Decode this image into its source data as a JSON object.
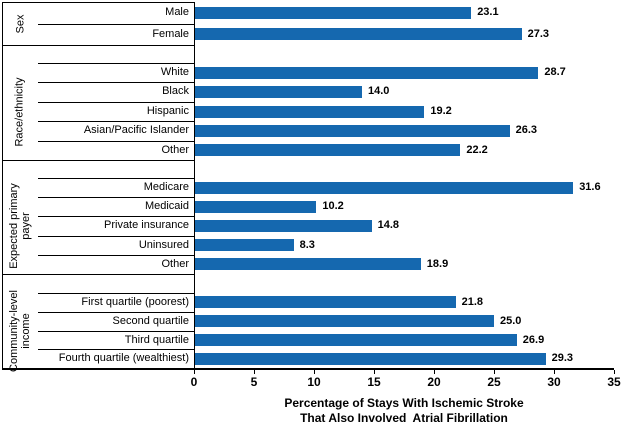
{
  "chart_data": {
    "type": "bar",
    "orientation": "horizontal",
    "title": "",
    "xlabel": "Percentage of Stays With Ischemic Stroke\nThat Also Involved  Atrial Fibrillation",
    "xlim": [
      0,
      35
    ],
    "x_ticks": [
      0,
      5,
      10,
      15,
      20,
      25,
      30,
      35
    ],
    "grid": false,
    "legend": false,
    "bar_color": "#1568AF",
    "axis_color": "#000000",
    "value_decimals": 1,
    "groups": [
      {
        "label": "Sex",
        "items": [
          {
            "label": "Male",
            "value": 23.1
          },
          {
            "label": "Female",
            "value": 27.3
          }
        ]
      },
      {
        "label": "Race/ethnicity",
        "items": [
          {
            "label": "White",
            "value": 28.7
          },
          {
            "label": "Black",
            "value": 14.0
          },
          {
            "label": "Hispanic",
            "value": 19.2
          },
          {
            "label": "Asian/Pacific Islander",
            "value": 26.3
          },
          {
            "label": "Other",
            "value": 22.2
          }
        ]
      },
      {
        "label": "Expected primary\npayer",
        "items": [
          {
            "label": "Medicare",
            "value": 31.6
          },
          {
            "label": "Medicaid",
            "value": 10.2
          },
          {
            "label": "Private insurance",
            "value": 14.8
          },
          {
            "label": "Uninsured",
            "value": 8.3
          },
          {
            "label": "Other",
            "value": 18.9
          }
        ]
      },
      {
        "label": "Community-level\nincome",
        "items": [
          {
            "label": "First quartile (poorest)",
            "value": 21.8
          },
          {
            "label": "Second quartile",
            "value": 25.0
          },
          {
            "label": "Third quartile",
            "value": 26.9
          },
          {
            "label": "Fourth quartile (wealthiest)",
            "value": 29.3
          }
        ]
      }
    ]
  }
}
